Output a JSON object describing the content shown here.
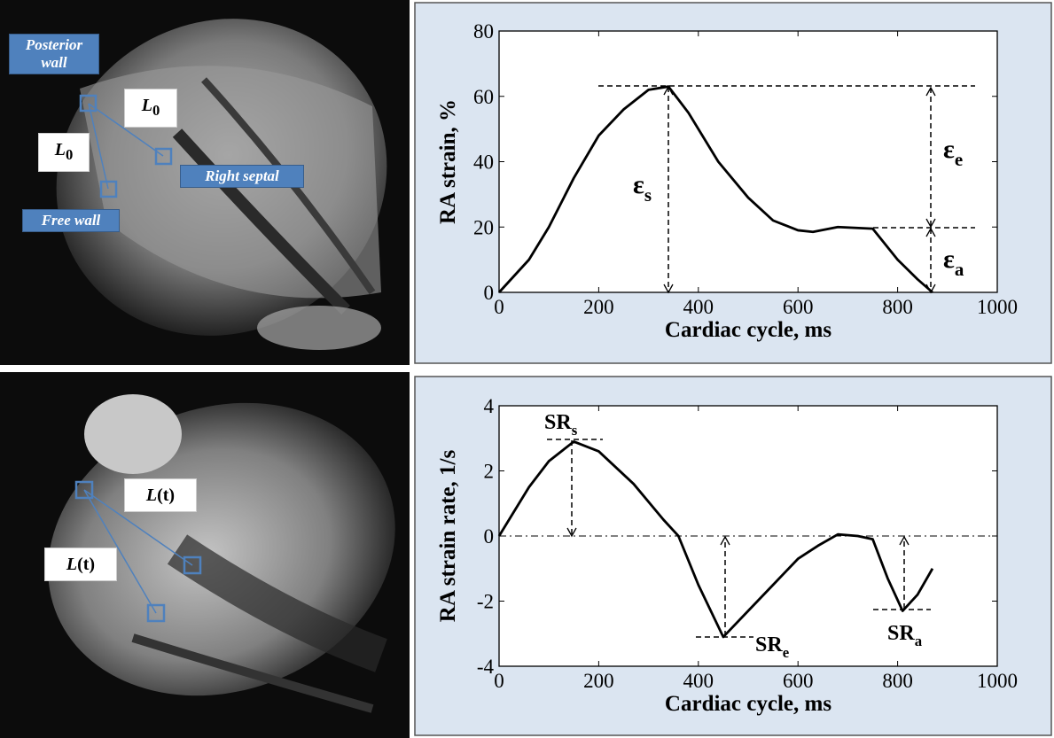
{
  "chart_data": [
    {
      "type": "line",
      "xlabel": "Cardiac cycle, ms",
      "ylabel": "RA strain, %",
      "x": [
        0,
        60,
        100,
        150,
        200,
        250,
        300,
        340,
        380,
        440,
        500,
        550,
        600,
        630,
        680,
        750,
        800,
        840,
        870
      ],
      "series": [
        {
          "color": "#000000",
          "values": [
            0,
            10,
            20,
            35,
            48,
            56,
            62,
            63,
            55,
            40,
            29,
            22,
            19,
            18.5,
            20,
            19.5,
            10,
            4,
            0
          ]
        }
      ],
      "xlim": [
        0,
        1000
      ],
      "ylim": [
        0,
        80
      ],
      "xticks": [
        0,
        200,
        400,
        600,
        800,
        1000
      ],
      "yticks": [
        0,
        20,
        40,
        60,
        80
      ],
      "annotations": [
        {
          "text": "ε",
          "sub": "s"
        },
        {
          "text": "ε",
          "sub": "e"
        },
        {
          "text": "ε",
          "sub": "a"
        }
      ]
    },
    {
      "type": "line",
      "xlabel": "Cardiac cycle, ms",
      "ylabel": "RA strain rate, 1/s",
      "x": [
        0,
        20,
        60,
        100,
        150,
        200,
        270,
        330,
        360,
        400,
        450,
        500,
        550,
        600,
        640,
        680,
        720,
        750,
        780,
        810,
        840,
        870
      ],
      "series": [
        {
          "color": "#000000",
          "values": [
            0,
            0.5,
            1.5,
            2.3,
            2.9,
            2.6,
            1.6,
            0.5,
            0,
            -1.5,
            -3.1,
            -2.3,
            -1.5,
            -0.7,
            -0.3,
            0.05,
            0,
            -0.1,
            -1.3,
            -2.3,
            -1.8,
            -1.0
          ]
        }
      ],
      "xlim": [
        0,
        1000
      ],
      "ylim": [
        -4,
        4
      ],
      "xticks": [
        0,
        200,
        400,
        600,
        800,
        1000
      ],
      "yticks": [
        -4,
        -2,
        0,
        2,
        4
      ],
      "zero_line": true,
      "annotations": [
        {
          "text": "SR",
          "sub": "s"
        },
        {
          "text": "SR",
          "sub": "e"
        },
        {
          "text": "SR",
          "sub": "a"
        }
      ]
    }
  ],
  "images": [
    {
      "labels": [
        {
          "text": "Posterior wall"
        },
        {
          "text": "L",
          "sub": "0"
        },
        {
          "text": "L",
          "sub": "0"
        },
        {
          "text": "Right septal"
        },
        {
          "text": "Free wall"
        }
      ]
    },
    {
      "labels": [
        {
          "text": "L",
          "suffix": "(t)"
        },
        {
          "text": "L",
          "suffix": "(t)"
        }
      ]
    }
  ]
}
